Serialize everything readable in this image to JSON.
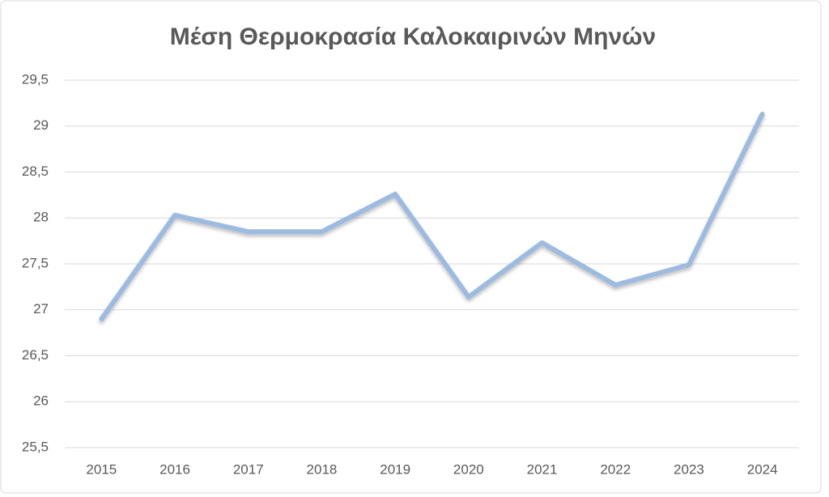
{
  "chart_data": {
    "type": "line",
    "title": "Μέση Θερμοκρασία Καλοκαιρινών Μηνών",
    "categories": [
      "2015",
      "2016",
      "2017",
      "2018",
      "2019",
      "2020",
      "2021",
      "2022",
      "2023",
      "2024"
    ],
    "series": [
      {
        "name": "Μέση Θερμοκρασία",
        "color": "#9dbbe0",
        "values": [
          26.9,
          28.03,
          27.85,
          27.85,
          28.26,
          27.14,
          27.73,
          27.27,
          27.49,
          29.13
        ]
      }
    ],
    "ylim": [
      25.5,
      29.5
    ],
    "yticks": [
      {
        "value": 25.5,
        "label": "25,5"
      },
      26,
      {
        "value": 26.5,
        "label": "26,5"
      },
      27,
      {
        "value": 27.5,
        "label": "27,5"
      },
      28,
      {
        "value": 28.5,
        "label": "28,5"
      },
      29,
      {
        "value": 29.5,
        "label": "29,5"
      }
    ],
    "grid": true
  }
}
